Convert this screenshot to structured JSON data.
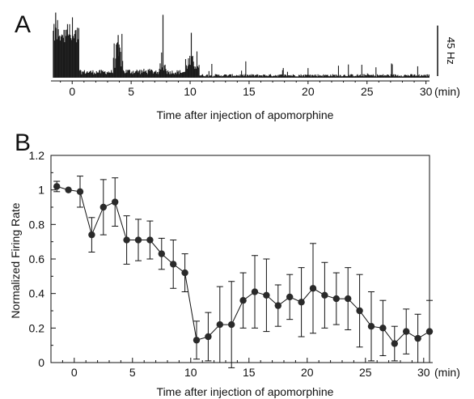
{
  "chart_data": [
    {
      "panel": "A",
      "type": "bar",
      "description_units": "firing rate histogram, Hz",
      "x_tick_labels": [
        "0",
        "5",
        "10",
        "15",
        "20",
        "25",
        "30"
      ],
      "x_ticks": [
        0,
        5,
        10,
        15,
        20,
        25,
        30
      ],
      "x_unit": "(min)",
      "xlabel": "Time after injection of apomorphine",
      "xlim": [
        -1.8,
        30.3
      ],
      "scale_bar_label": "45 Hz",
      "scale_bar_value": 45,
      "ylim": [
        0,
        62
      ]
    },
    {
      "panel": "B",
      "type": "line",
      "xlabel": "Time after injection of apomorphine",
      "x_unit": "(min)",
      "ylabel": "Normalized Firing Rate",
      "xlim": [
        -2,
        30.5
      ],
      "ylim": [
        0,
        1.2
      ],
      "x_ticks": [
        0,
        5,
        10,
        15,
        20,
        25,
        30
      ],
      "y_ticks": [
        0,
        0.2,
        0.4,
        0.6,
        0.8,
        1.0,
        1.2
      ],
      "y_tick_labels": [
        "0",
        "0.2",
        "0.4",
        "0.6",
        "0.8",
        "1",
        "1.2"
      ],
      "x": [
        -1.5,
        -0.5,
        0.5,
        1.5,
        2.5,
        3.5,
        4.5,
        5.5,
        6.5,
        7.5,
        8.5,
        9.5,
        10.5,
        11.5,
        12.5,
        13.5,
        14.5,
        15.5,
        16.5,
        17.5,
        18.5,
        19.5,
        20.5,
        21.5,
        22.5,
        23.5,
        24.5,
        25.5,
        26.5,
        27.5,
        28.5,
        29.5,
        30.5
      ],
      "values": [
        1.02,
        1.0,
        0.99,
        0.74,
        0.9,
        0.93,
        0.71,
        0.71,
        0.71,
        0.63,
        0.57,
        0.52,
        0.13,
        0.15,
        0.22,
        0.22,
        0.36,
        0.41,
        0.39,
        0.33,
        0.38,
        0.35,
        0.43,
        0.39,
        0.37,
        0.37,
        0.3,
        0.21,
        0.2,
        0.11,
        0.18,
        0.14,
        0.18
      ],
      "errors": [
        0.03,
        0.0,
        0.09,
        0.1,
        0.16,
        0.14,
        0.14,
        0.12,
        0.11,
        0.09,
        0.14,
        0.11,
        0.11,
        0.14,
        0.22,
        0.25,
        0.16,
        0.21,
        0.21,
        0.12,
        0.13,
        0.2,
        0.26,
        0.19,
        0.15,
        0.18,
        0.21,
        0.2,
        0.16,
        0.1,
        0.13,
        0.14,
        0.18
      ]
    }
  ],
  "labels": {
    "panel_a": "A",
    "panel_b": "B"
  },
  "colors": {
    "ink": "#111111",
    "histogram": "#1a1a1a"
  }
}
